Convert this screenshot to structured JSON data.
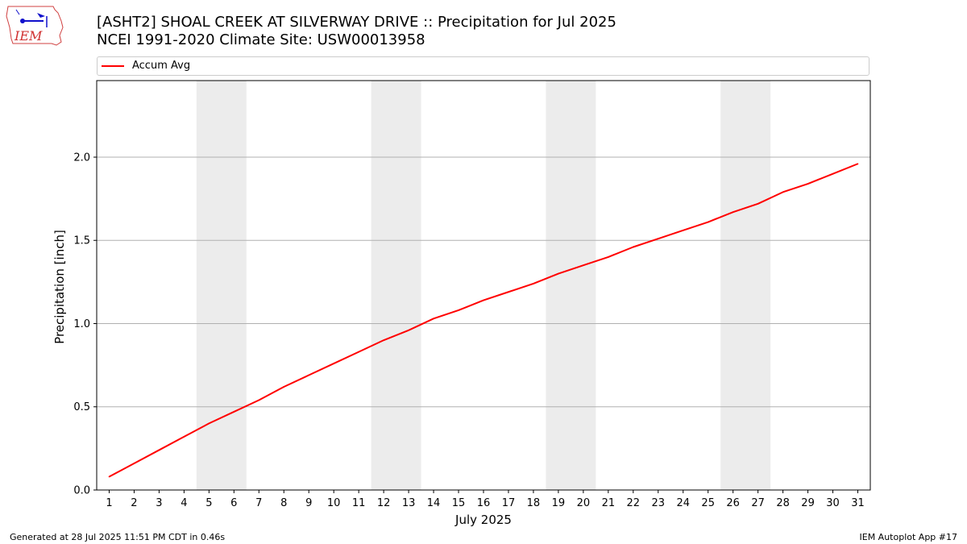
{
  "header": {
    "logo_text": "IEM",
    "title_line1": "[ASHT2] SHOAL CREEK AT SILVERWAY DRIVE :: Precipitation for Jul 2025",
    "title_line2": "NCEI 1991-2020 Climate Site: USW00013958"
  },
  "footer": {
    "generated": "Generated at 28 Jul 2025 11:51 PM CDT in 0.46s",
    "app": "IEM Autoplot App #17"
  },
  "chart_data": {
    "type": "line",
    "title": "",
    "xlabel": "July 2025",
    "ylabel": "Precipitation [inch]",
    "xlim": [
      0.5,
      31.5
    ],
    "ylim": [
      0,
      2.46
    ],
    "yticks": [
      0.0,
      0.5,
      1.0,
      1.5,
      2.0
    ],
    "ytick_labels": [
      "0.0",
      "0.5",
      "1.0",
      "1.5",
      "2.0"
    ],
    "xticks": [
      1,
      2,
      3,
      4,
      5,
      6,
      7,
      8,
      9,
      10,
      11,
      12,
      13,
      14,
      15,
      16,
      17,
      18,
      19,
      20,
      21,
      22,
      23,
      24,
      25,
      26,
      27,
      28,
      29,
      30,
      31
    ],
    "xtick_labels": [
      "1",
      "2",
      "3",
      "4",
      "5",
      "6",
      "7",
      "8",
      "9",
      "10",
      "11",
      "12",
      "13",
      "14",
      "15",
      "16",
      "17",
      "18",
      "19",
      "20",
      "21",
      "22",
      "23",
      "24",
      "25",
      "26",
      "27",
      "28",
      "29",
      "30",
      "31"
    ],
    "grid": "y",
    "legend_position": "top",
    "weekend_shading": [
      [
        4.5,
        6.5
      ],
      [
        11.5,
        13.5
      ],
      [
        18.5,
        20.5
      ],
      [
        25.5,
        27.5
      ]
    ],
    "shade_color": "#ececec",
    "series": [
      {
        "name": "Accum Avg",
        "color": "#ff0000",
        "x": [
          1,
          2,
          3,
          4,
          5,
          6,
          7,
          8,
          9,
          10,
          11,
          12,
          13,
          14,
          15,
          16,
          17,
          18,
          19,
          20,
          21,
          22,
          23,
          24,
          25,
          26,
          27,
          28,
          29,
          30,
          31
        ],
        "y": [
          0.08,
          0.16,
          0.24,
          0.32,
          0.4,
          0.47,
          0.54,
          0.62,
          0.69,
          0.76,
          0.83,
          0.9,
          0.96,
          1.03,
          1.08,
          1.14,
          1.19,
          1.24,
          1.3,
          1.35,
          1.4,
          1.46,
          1.51,
          1.56,
          1.61,
          1.67,
          1.72,
          1.79,
          1.84,
          1.9,
          1.96
        ]
      }
    ]
  }
}
